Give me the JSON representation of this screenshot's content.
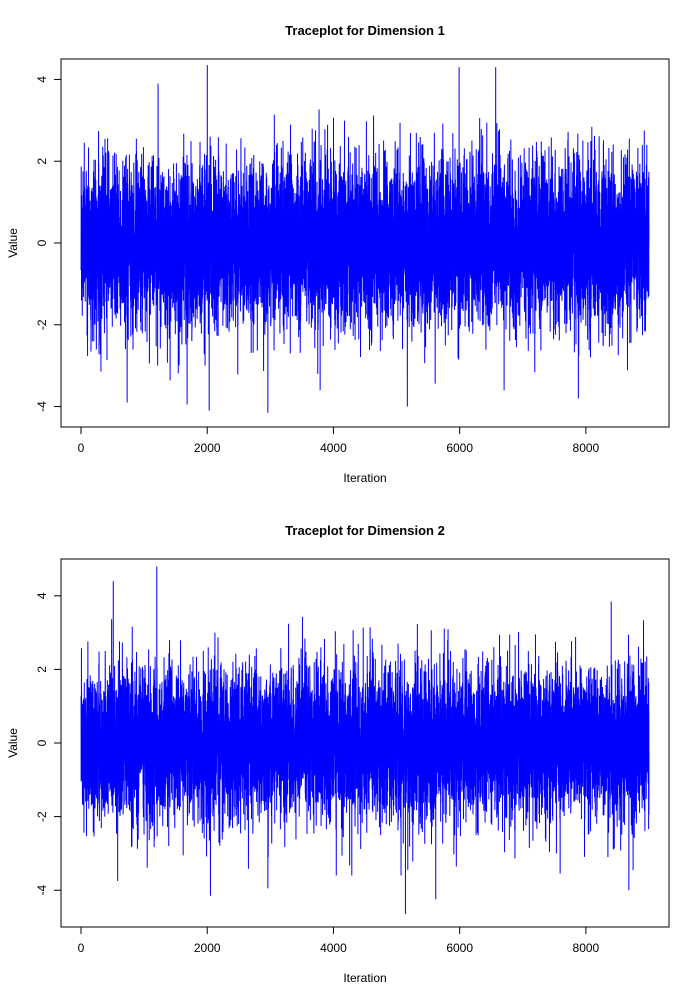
{
  "chart_data": [
    {
      "type": "line",
      "title": "Traceplot for Dimension 1",
      "xlabel": "Iteration",
      "ylabel": "Value",
      "xlim": [
        0,
        9000
      ],
      "ylim": [
        -4.5,
        4.5
      ],
      "xticks": [
        "0",
        "2000",
        "4000",
        "6000",
        "8000"
      ],
      "yticks": [
        "-4",
        "-2",
        "0",
        "2",
        "4"
      ],
      "series": [
        {
          "color": "#0000ff",
          "n": 9000,
          "mean": 0,
          "sd": 1,
          "extremes": [
            {
              "x": 2000,
              "y": 4.35
            },
            {
              "x": 5990,
              "y": 4.3
            },
            {
              "x": 6570,
              "y": 4.3
            },
            {
              "x": 1220,
              "y": 3.9
            },
            {
              "x": 2030,
              "y": -4.1
            },
            {
              "x": 2960,
              "y": -4.15
            },
            {
              "x": 5170,
              "y": -4.0
            },
            {
              "x": 730,
              "y": -3.9
            },
            {
              "x": 1680,
              "y": -3.95
            },
            {
              "x": 7880,
              "y": -3.8
            }
          ]
        }
      ]
    },
    {
      "type": "line",
      "title": "Traceplot for Dimension 2",
      "xlabel": "Iteration",
      "ylabel": "Value",
      "xlim": [
        0,
        9000
      ],
      "ylim": [
        -5,
        5
      ],
      "xticks": [
        "0",
        "2000",
        "4000",
        "6000",
        "8000"
      ],
      "yticks": [
        "-4",
        "-2",
        "0",
        "2",
        "4"
      ],
      "series": [
        {
          "color": "#0000ff",
          "n": 9000,
          "mean": 0,
          "sd": 1,
          "extremes": [
            {
              "x": 1200,
              "y": 4.8
            },
            {
              "x": 510,
              "y": 4.4
            },
            {
              "x": 8400,
              "y": 3.85
            },
            {
              "x": 5140,
              "y": -4.65
            },
            {
              "x": 5620,
              "y": -4.25
            },
            {
              "x": 2050,
              "y": -4.15
            },
            {
              "x": 8680,
              "y": -4.0
            },
            {
              "x": 2960,
              "y": -3.95
            },
            {
              "x": 580,
              "y": -3.75
            }
          ]
        }
      ]
    }
  ]
}
